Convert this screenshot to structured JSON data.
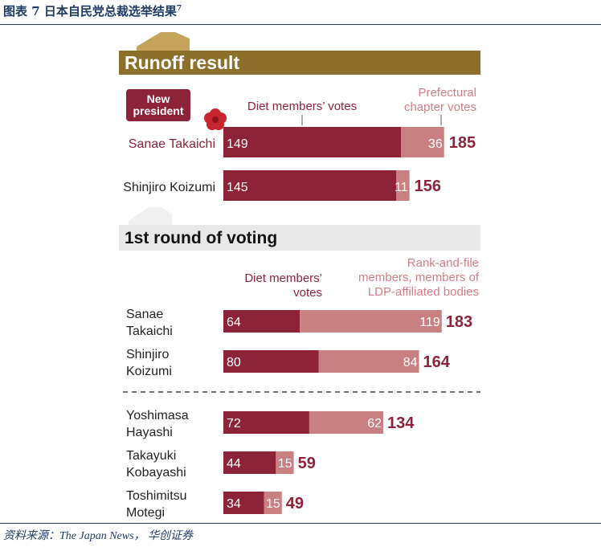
{
  "figure": {
    "title": "图表 7  日本自民党总裁选举结果",
    "title_note": "7",
    "source": "资料来源：The Japan News， 华创证券"
  },
  "colors": {
    "dark": "#8c2339",
    "light": "#c98083",
    "gold": "#8d6f2c",
    "gold_light": "#c4a35a",
    "gray_band": "#e8e8e8",
    "total_text": "#8c2339",
    "label_dark": "#8c2339",
    "label_light": "#d27d86",
    "badge": "#8c2339",
    "rule": "#1e3a66"
  },
  "chart_data": [
    {
      "type": "bar",
      "stacked": true,
      "orientation": "horizontal",
      "title": "Runoff result",
      "badge": "New\npresident",
      "badge_icon": "rose-icon",
      "series_labels": [
        "Diet members’ votes",
        "Prefectural\nchapter votes"
      ],
      "categories": [
        "Sanae Takaichi",
        "Shinjiro Koizumi"
      ],
      "series": [
        {
          "values": [
            149,
            145
          ]
        },
        {
          "values": [
            36,
            11
          ]
        }
      ],
      "totals": [
        185,
        156
      ]
    },
    {
      "type": "bar",
      "stacked": true,
      "orientation": "horizontal",
      "title": "1st round of voting",
      "series_labels": [
        "Diet members’\nvotes",
        "Rank-and-file\nmembers, members of\nLDP-affiliated bodies"
      ],
      "categories": [
        "Sanae\nTakaichi",
        "Shinjiro\nKoizumi",
        "Yoshimasa\nHayashi",
        "Takayuki\nKobayashi",
        "Toshimitsu\nMotegi"
      ],
      "series": [
        {
          "values": [
            64,
            80,
            72,
            44,
            34
          ]
        },
        {
          "values": [
            119,
            84,
            62,
            15,
            15
          ]
        }
      ],
      "totals": [
        183,
        164,
        134,
        59,
        49
      ]
    }
  ]
}
